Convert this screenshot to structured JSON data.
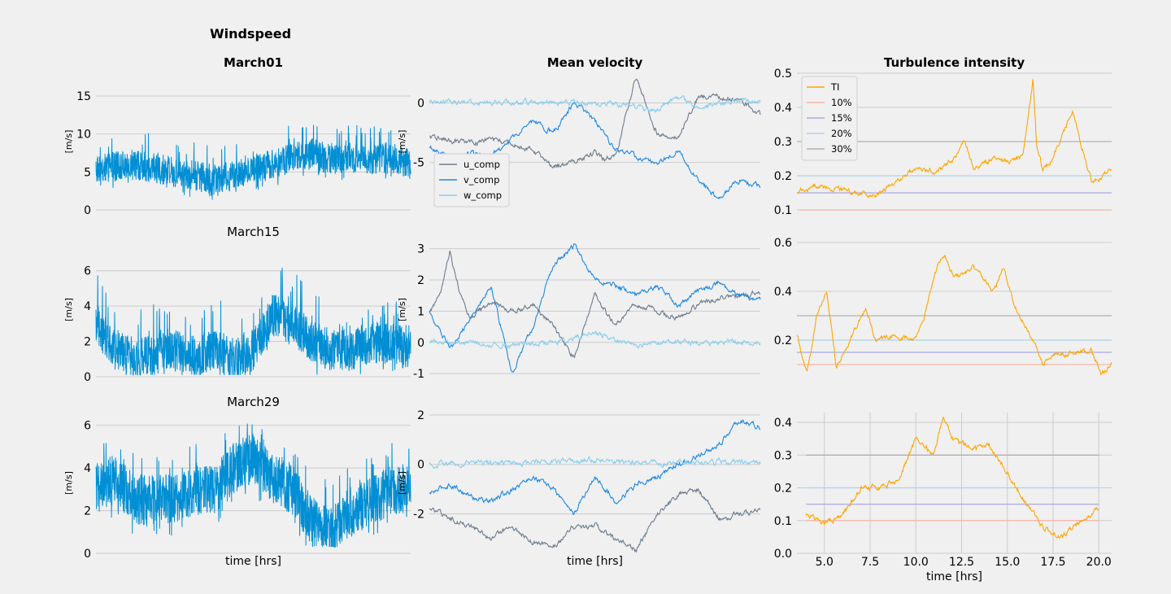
{
  "figure": {
    "suptitle": "Windspeed",
    "column_titles": [
      "",
      "Mean velocity",
      "Turbulence intensity"
    ],
    "bottom_xlabel": "time [hrs]"
  },
  "colors": {
    "windspeed": "#008fd5",
    "u_comp": "#6d7b8d",
    "v_comp": "#1e88e5",
    "w_comp": "#87ceeb",
    "TI": "#ffa500",
    "ref_10": "#f4b6a6",
    "ref_15": "#a8a8e6",
    "ref_20": "#a9d3ea",
    "ref_30": "#b0b0b0",
    "grid": "#cbcbcb",
    "background": "#f0f0f0"
  },
  "chart_data": [
    {
      "type": "line",
      "title": "March01",
      "title_bold": true,
      "ylabel": "[m/s]",
      "xlim": [
        4,
        20
      ],
      "ylim": [
        0,
        18
      ],
      "yticks": [
        0,
        5,
        10,
        15
      ],
      "show_xticks": false,
      "xlabel": "",
      "series": [
        {
          "key": "windspeed",
          "kind": "noisy",
          "base_x": [
            4,
            6,
            8,
            9,
            10,
            11,
            12,
            13,
            14,
            15,
            16,
            17,
            18,
            19,
            20
          ],
          "base_y": [
            5.5,
            6.0,
            5.0,
            4.5,
            4.0,
            4.5,
            5.5,
            6.0,
            7.0,
            7.5,
            6.5,
            7.0,
            6.5,
            7.0,
            6.0
          ],
          "amp": 2.0,
          "spikes": 4.5,
          "floor": 0.5
        }
      ]
    },
    {
      "type": "line",
      "title": "Mean velocity",
      "title_bold": true,
      "ylabel": "[m/s]",
      "xlim": [
        4,
        20
      ],
      "ylim": [
        -9,
        2.5
      ],
      "yticks": [
        -5,
        0
      ],
      "show_xticks": false,
      "xlabel": "",
      "legend": {
        "entries": [
          "u_comp",
          "v_comp",
          "w_comp"
        ],
        "position": "lower-left"
      },
      "series": [
        {
          "name": "u_comp",
          "key": "u_comp",
          "kind": "smooth",
          "x": [
            4,
            5,
            6,
            7,
            8,
            9,
            10,
            11,
            12,
            12.5,
            13,
            13.5,
            14,
            15,
            16,
            17,
            18,
            19,
            20
          ],
          "y": [
            -2.8,
            -3.2,
            -3.4,
            -3.0,
            -3.5,
            -4.0,
            -5.3,
            -5.0,
            -4.2,
            -4.8,
            -4.5,
            -1.0,
            2.2,
            -2.5,
            -3.0,
            0.5,
            0.5,
            0.2,
            -1.0
          ]
        },
        {
          "name": "v_comp",
          "key": "v_comp",
          "kind": "smooth",
          "x": [
            4,
            5,
            6,
            7,
            8,
            9,
            10,
            11,
            12,
            13,
            14,
            15,
            16,
            17,
            18,
            19,
            20
          ],
          "y": [
            -3.8,
            -4.6,
            -4.3,
            -4.5,
            -3.0,
            -1.5,
            -2.5,
            0.0,
            -1.5,
            -4.0,
            -4.5,
            -5.0,
            -4.0,
            -6.5,
            -8.0,
            -6.5,
            -7.0
          ]
        },
        {
          "name": "w_comp",
          "key": "w_comp",
          "kind": "smooth",
          "x": [
            4,
            6,
            8,
            10,
            12,
            14,
            15,
            16,
            17,
            18,
            19,
            20
          ],
          "y": [
            0.0,
            0.1,
            0.0,
            0.1,
            0.0,
            -0.3,
            -0.6,
            0.5,
            -0.5,
            0.0,
            0.2,
            0.1
          ]
        }
      ]
    },
    {
      "type": "line",
      "title": "Turbulence intensity",
      "title_bold": true,
      "ylabel": "",
      "xlim": [
        4,
        20
      ],
      "ylim": [
        0.1,
        0.5
      ],
      "yticks": [
        0.1,
        0.2,
        0.3,
        0.4,
        0.5
      ],
      "show_xticks": false,
      "xlabel": "",
      "legend": {
        "entries": [
          "TI",
          "10%",
          "15%",
          "20%",
          "30%"
        ],
        "position": "upper-left"
      },
      "hlines": [
        {
          "name": "10%",
          "key": "ref_10",
          "y": 0.1
        },
        {
          "name": "15%",
          "key": "ref_15",
          "y": 0.15
        },
        {
          "name": "20%",
          "key": "ref_20",
          "y": 0.2
        },
        {
          "name": "30%",
          "key": "ref_30",
          "y": 0.3
        }
      ],
      "series": [
        {
          "name": "TI",
          "key": "TI",
          "kind": "smooth",
          "x": [
            4,
            5,
            6,
            7,
            8,
            9,
            10,
            11,
            11.5,
            12,
            12.5,
            13,
            14,
            15,
            15.5,
            16,
            16.2,
            16.5,
            17,
            18,
            19,
            20
          ],
          "y": [
            0.15,
            0.17,
            0.16,
            0.15,
            0.14,
            0.18,
            0.22,
            0.21,
            0.23,
            0.25,
            0.3,
            0.22,
            0.25,
            0.24,
            0.26,
            0.49,
            0.28,
            0.22,
            0.25,
            0.39,
            0.18,
            0.22
          ]
        }
      ]
    },
    {
      "type": "line",
      "title": "March15",
      "title_bold": false,
      "ylabel": "[m/s]",
      "xlim": [
        4,
        20
      ],
      "ylim": [
        0,
        7.6
      ],
      "yticks": [
        0,
        2,
        4,
        6
      ],
      "show_xticks": false,
      "xlabel": "",
      "series": [
        {
          "key": "windspeed",
          "kind": "noisy",
          "base_x": [
            4,
            5,
            6,
            7,
            8,
            9,
            10,
            11,
            12,
            13,
            14,
            15,
            16,
            17,
            18,
            19,
            20
          ],
          "base_y": [
            3.0,
            1.5,
            1.0,
            1.2,
            1.5,
            1.2,
            1.5,
            1.0,
            1.5,
            3.5,
            3.0,
            2.0,
            1.5,
            1.5,
            2.0,
            1.8,
            1.6
          ],
          "amp": 1.2,
          "spikes": 3.0,
          "floor": 0.1
        }
      ]
    },
    {
      "type": "line",
      "title": "",
      "title_bold": false,
      "ylabel": "[m/s]",
      "xlim": [
        4,
        20
      ],
      "ylim": [
        -1.1,
        3.2
      ],
      "yticks": [
        -1,
        0,
        1,
        2,
        3
      ],
      "show_xticks": false,
      "xlabel": "",
      "series": [
        {
          "name": "u_comp",
          "key": "u_comp",
          "kind": "smooth",
          "x": [
            4,
            4.5,
            5,
            5.5,
            6,
            7,
            8,
            9,
            10,
            11,
            12,
            13,
            14,
            15,
            16,
            17,
            18,
            19,
            20
          ],
          "y": [
            1.0,
            1.5,
            2.9,
            1.5,
            0.8,
            1.3,
            1.0,
            1.2,
            0.5,
            -0.5,
            1.5,
            0.5,
            1.2,
            1.0,
            0.8,
            1.2,
            1.4,
            1.5,
            1.6
          ]
        },
        {
          "name": "v_comp",
          "key": "v_comp",
          "kind": "smooth",
          "x": [
            4,
            5,
            6,
            7,
            8,
            9,
            10,
            11,
            12,
            13,
            14,
            15,
            16,
            17,
            18,
            19,
            20
          ],
          "y": [
            1.0,
            -0.2,
            0.8,
            1.8,
            -1.0,
            0.5,
            2.5,
            3.1,
            2.0,
            1.8,
            1.5,
            1.8,
            1.2,
            1.6,
            1.9,
            1.5,
            1.4
          ]
        },
        {
          "name": "w_comp",
          "key": "w_comp",
          "kind": "smooth",
          "x": [
            4,
            6,
            8,
            10,
            12,
            14,
            16,
            18,
            20
          ],
          "y": [
            0.0,
            0.0,
            -0.1,
            0.0,
            0.3,
            -0.1,
            0.0,
            0.0,
            0.0
          ]
        }
      ]
    },
    {
      "type": "line",
      "title": "",
      "title_bold": false,
      "ylabel": "",
      "xlim": [
        4,
        20
      ],
      "ylim": [
        0.05,
        0.6
      ],
      "yticks": [
        0.2,
        0.4,
        0.6
      ],
      "show_xticks": false,
      "xlabel": "",
      "hlines": [
        {
          "name": "10%",
          "key": "ref_10",
          "y": 0.1
        },
        {
          "name": "15%",
          "key": "ref_15",
          "y": 0.15
        },
        {
          "name": "20%",
          "key": "ref_20",
          "y": 0.2
        },
        {
          "name": "30%",
          "key": "ref_30",
          "y": 0.3
        }
      ],
      "series": [
        {
          "name": "TI",
          "key": "TI",
          "kind": "smooth",
          "x": [
            4,
            4.5,
            5,
            5.5,
            6,
            7,
            7.5,
            8,
            9,
            10,
            10.5,
            11,
            11.5,
            12,
            13,
            14,
            14.5,
            15,
            16,
            16.5,
            17,
            18,
            19,
            19.5,
            20
          ],
          "y": [
            0.22,
            0.06,
            0.3,
            0.4,
            0.08,
            0.25,
            0.33,
            0.2,
            0.22,
            0.2,
            0.3,
            0.48,
            0.55,
            0.45,
            0.5,
            0.4,
            0.5,
            0.35,
            0.2,
            0.1,
            0.14,
            0.15,
            0.16,
            0.06,
            0.1
          ]
        }
      ]
    },
    {
      "type": "line",
      "title": "March29",
      "title_bold": false,
      "ylabel": "[m/s]",
      "xlim": [
        4,
        20
      ],
      "ylim": [
        0,
        6.6
      ],
      "yticks": [
        0,
        2,
        4,
        6
      ],
      "show_xticks": false,
      "xlabel": "time [hrs]",
      "series": [
        {
          "key": "windspeed",
          "kind": "noisy",
          "base_x": [
            4,
            5,
            6,
            7,
            8,
            9,
            10,
            11,
            12,
            13,
            14,
            15,
            16,
            17,
            18,
            19,
            20
          ],
          "base_y": [
            3.0,
            3.5,
            2.5,
            2.5,
            2.5,
            3.0,
            3.0,
            4.0,
            4.5,
            3.5,
            3.0,
            1.5,
            1.2,
            2.0,
            2.5,
            3.0,
            3.0
          ],
          "amp": 1.2,
          "spikes": 2.2,
          "floor": 0.3
        }
      ]
    },
    {
      "type": "line",
      "title": "",
      "title_bold": false,
      "ylabel": "[m/s]",
      "xlim": [
        4,
        20
      ],
      "ylim": [
        -3.6,
        2.1
      ],
      "yticks": [
        -2,
        0,
        2
      ],
      "show_xticks": false,
      "xlabel": "time [hrs]",
      "series": [
        {
          "name": "u_comp",
          "key": "u_comp",
          "kind": "smooth",
          "x": [
            4,
            5,
            6,
            7,
            8,
            9,
            10,
            11,
            12,
            13,
            14,
            15,
            16,
            17,
            18,
            19,
            20
          ],
          "y": [
            -1.8,
            -2.2,
            -2.5,
            -3.0,
            -2.5,
            -3.2,
            -3.3,
            -2.5,
            -2.5,
            -3.0,
            -3.5,
            -2.0,
            -1.2,
            -1.0,
            -2.2,
            -2.0,
            -1.9
          ]
        },
        {
          "name": "v_comp",
          "key": "v_comp",
          "kind": "smooth",
          "x": [
            4,
            5,
            6,
            7,
            8,
            9,
            10,
            11,
            12,
            13,
            14,
            15,
            16,
            17,
            18,
            19,
            20
          ],
          "y": [
            -1.2,
            -0.8,
            -1.3,
            -1.5,
            -1.0,
            -0.5,
            -1.0,
            -2.0,
            -0.5,
            -1.5,
            -0.8,
            -0.5,
            0.0,
            0.3,
            0.8,
            1.8,
            1.5
          ]
        },
        {
          "name": "w_comp",
          "key": "w_comp",
          "kind": "smooth",
          "x": [
            4,
            6,
            8,
            10,
            12,
            14,
            16,
            18,
            20
          ],
          "y": [
            0.0,
            0.05,
            0.05,
            0.1,
            0.2,
            0.05,
            0.05,
            0.1,
            0.1
          ]
        }
      ]
    },
    {
      "type": "line",
      "title": "",
      "title_bold": false,
      "ylabel": "",
      "xlim": [
        3.5,
        20.7
      ],
      "ylim": [
        0.0,
        0.43
      ],
      "yticks": [
        0.0,
        0.1,
        0.2,
        0.3,
        0.4
      ],
      "show_xticks": true,
      "xticks": [
        "5.0",
        "7.5",
        "10.0",
        "12.5",
        "15.0",
        "17.5",
        "20.0"
      ],
      "xtick_values": [
        5,
        7.5,
        10,
        12.5,
        15,
        17.5,
        20
      ],
      "xlabel": "time [hrs]",
      "hlines": [
        {
          "name": "10%",
          "key": "ref_10",
          "y": 0.1
        },
        {
          "name": "15%",
          "key": "ref_15",
          "y": 0.15
        },
        {
          "name": "20%",
          "key": "ref_20",
          "y": 0.2
        },
        {
          "name": "30%",
          "key": "ref_30",
          "y": 0.3
        }
      ],
      "series": [
        {
          "name": "TI",
          "key": "TI",
          "kind": "smooth",
          "x": [
            4,
            5,
            6,
            7,
            8,
            9,
            10,
            11,
            11.5,
            12,
            13,
            14,
            15,
            16,
            17,
            18,
            19,
            20
          ],
          "y": [
            0.12,
            0.09,
            0.12,
            0.2,
            0.2,
            0.22,
            0.35,
            0.3,
            0.42,
            0.35,
            0.32,
            0.33,
            0.25,
            0.15,
            0.08,
            0.05,
            0.1,
            0.14
          ]
        }
      ]
    }
  ]
}
